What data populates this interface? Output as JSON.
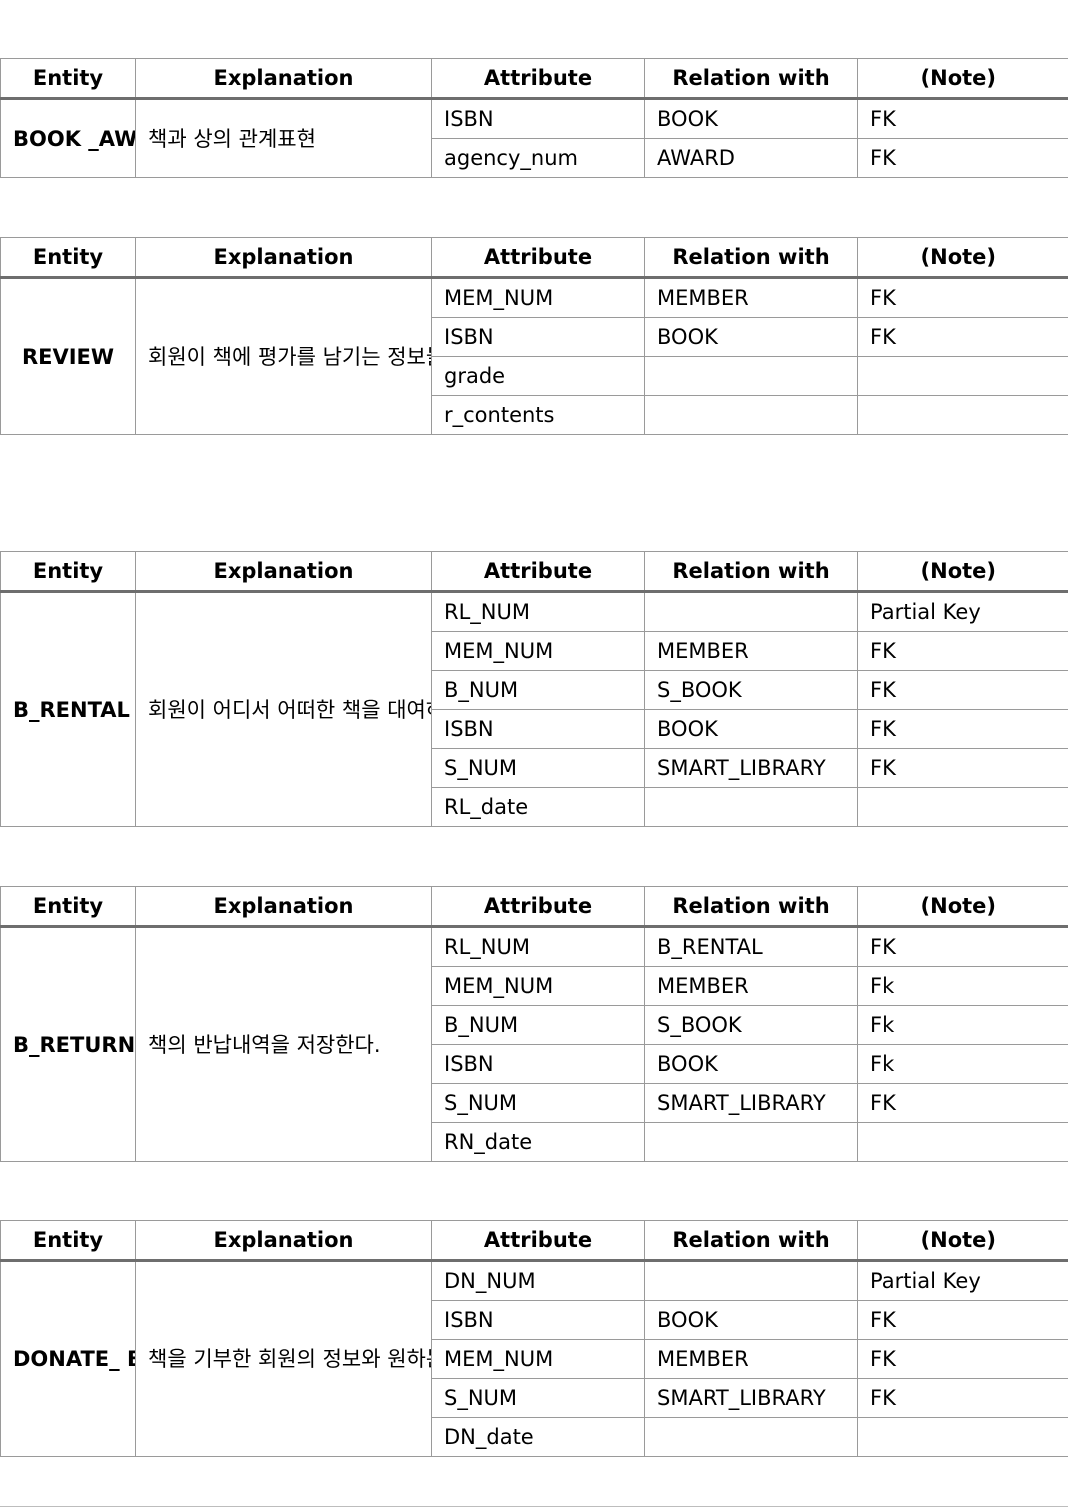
{
  "headers": {
    "entity": "Entity",
    "explanation": "Explanation",
    "attribute": "Attribute",
    "relation": "Relation with",
    "note": "(Note)"
  },
  "tables": [
    {
      "entity": "BOOK _AWARD",
      "explanation": "책과 상의 관계표현",
      "rows": [
        {
          "attribute": "ISBN",
          "relation": "BOOK",
          "note": "FK"
        },
        {
          "attribute": "agency_num",
          "relation": "AWARD",
          "note": "FK"
        }
      ]
    },
    {
      "entity": "REVIEW",
      "explanation": "회원이 책에 평가를 남기는 정보들을 저장한다.",
      "rows": [
        {
          "attribute": "MEM_NUM",
          "relation": "MEMBER",
          "note": "FK"
        },
        {
          "attribute": "ISBN",
          "relation": "BOOK",
          "note": "FK"
        },
        {
          "attribute": "grade",
          "relation": "",
          "note": ""
        },
        {
          "attribute": "r_contents",
          "relation": "",
          "note": ""
        }
      ]
    },
    {
      "entity": "B_RENTAL (대여내역)",
      "explanation": "회원이 어디서 어떠한 책을 대여하였는지 저장한다.",
      "rows": [
        {
          "attribute": "RL_NUM",
          "relation": "",
          "note": "Partial Key"
        },
        {
          "attribute": "MEM_NUM",
          "relation": "MEMBER",
          "note": "FK"
        },
        {
          "attribute": "B_NUM",
          "relation": "S_BOOK",
          "note": "FK"
        },
        {
          "attribute": "ISBN",
          "relation": "BOOK",
          "note": "FK"
        },
        {
          "attribute": "S_NUM",
          "relation": "SMART_LIBRARY",
          "note": "FK"
        },
        {
          "attribute": "RL_date",
          "relation": "",
          "note": ""
        }
      ]
    },
    {
      "entity": "B_RETURN (반납내역)",
      "explanation": "책의 반납내역을 저장한다.",
      "rows": [
        {
          "attribute": "RL_NUM",
          "relation": "B_RENTAL",
          "note": "FK"
        },
        {
          "attribute": "MEM_NUM",
          "relation": "MEMBER",
          "note": "Fk"
        },
        {
          "attribute": "B_NUM",
          "relation": "S_BOOK",
          "note": "Fk"
        },
        {
          "attribute": "ISBN",
          "relation": "BOOK",
          "note": "Fk"
        },
        {
          "attribute": "S_NUM",
          "relation": "SMART_LIBRARY",
          "note": "FK"
        },
        {
          "attribute": "RN_date",
          "relation": "",
          "note": ""
        }
      ]
    },
    {
      "entity": "DONATE_ BOOK",
      "explanation": "책을 기부한 회원의 정보와 원하는 책, 원하는 위치의 도서관의 정보를 저장한다.",
      "rows": [
        {
          "attribute": "DN_NUM",
          "relation": "",
          "note": "Partial Key"
        },
        {
          "attribute": "ISBN",
          "relation": "BOOK",
          "note": "FK"
        },
        {
          "attribute": "MEM_NUM",
          "relation": "MEMBER",
          "note": "FK"
        },
        {
          "attribute": "S_NUM",
          "relation": "SMART_LIBRARY",
          "note": "FK"
        },
        {
          "attribute": "DN_date",
          "relation": "",
          "note": ""
        }
      ]
    }
  ]
}
